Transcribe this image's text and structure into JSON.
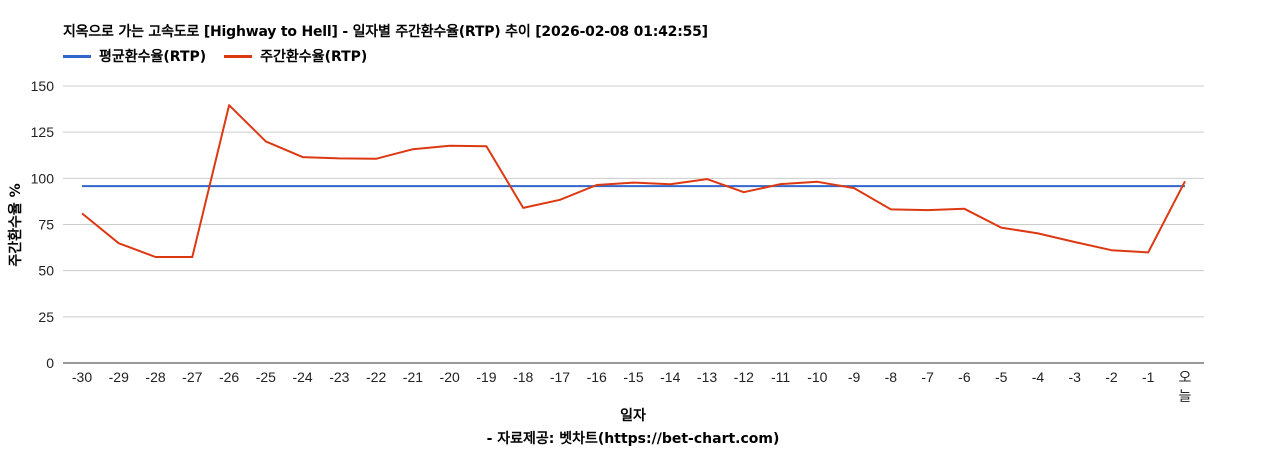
{
  "chart_data": {
    "type": "line",
    "title": "지옥으로 가는 고속도로 [Highway to Hell] - 일자별 주간환수율(RTP) 추이 [2026-02-08 01:42:55]",
    "xlabel": "일자",
    "ylabel": "주간환수율 %",
    "credit": "- 자료제공: 벳차트(https://bet-chart.com)",
    "ylim": [
      0,
      150
    ],
    "yticks": [
      0,
      25,
      50,
      75,
      100,
      125,
      150
    ],
    "grid": true,
    "legend_position": "top-left",
    "categories": [
      "-30",
      "-29",
      "-28",
      "-27",
      "-26",
      "-25",
      "-24",
      "-23",
      "-22",
      "-21",
      "-20",
      "-19",
      "-18",
      "-17",
      "-16",
      "-15",
      "-14",
      "-13",
      "-12",
      "-11",
      "-10",
      "-9",
      "-8",
      "-7",
      "-6",
      "-5",
      "-4",
      "-3",
      "-2",
      "-1",
      "오늘"
    ],
    "series": [
      {
        "name": "평균환수율(RTP)",
        "color": "#3366cc",
        "values": [
          95.8,
          95.8,
          95.8,
          95.8,
          95.8,
          95.8,
          95.8,
          95.8,
          95.8,
          95.8,
          95.8,
          95.8,
          95.8,
          95.8,
          95.8,
          95.8,
          95.8,
          95.8,
          95.8,
          95.8,
          95.8,
          95.8,
          95.8,
          95.8,
          95.8,
          95.8,
          95.8,
          95.8,
          95.8,
          95.8,
          95.8
        ]
      },
      {
        "name": "주간환수율(RTP)",
        "color": "#dc3912",
        "values": [
          81.0,
          64.8,
          57.4,
          57.4,
          139.6,
          120.0,
          111.5,
          110.8,
          110.6,
          115.8,
          117.6,
          117.4,
          84.0,
          88.4,
          96.4,
          97.7,
          96.8,
          99.6,
          92.5,
          96.9,
          98.1,
          94.7,
          83.2,
          82.8,
          83.5,
          73.3,
          70.2,
          65.5,
          61.1,
          59.9,
          98.4
        ]
      }
    ]
  }
}
